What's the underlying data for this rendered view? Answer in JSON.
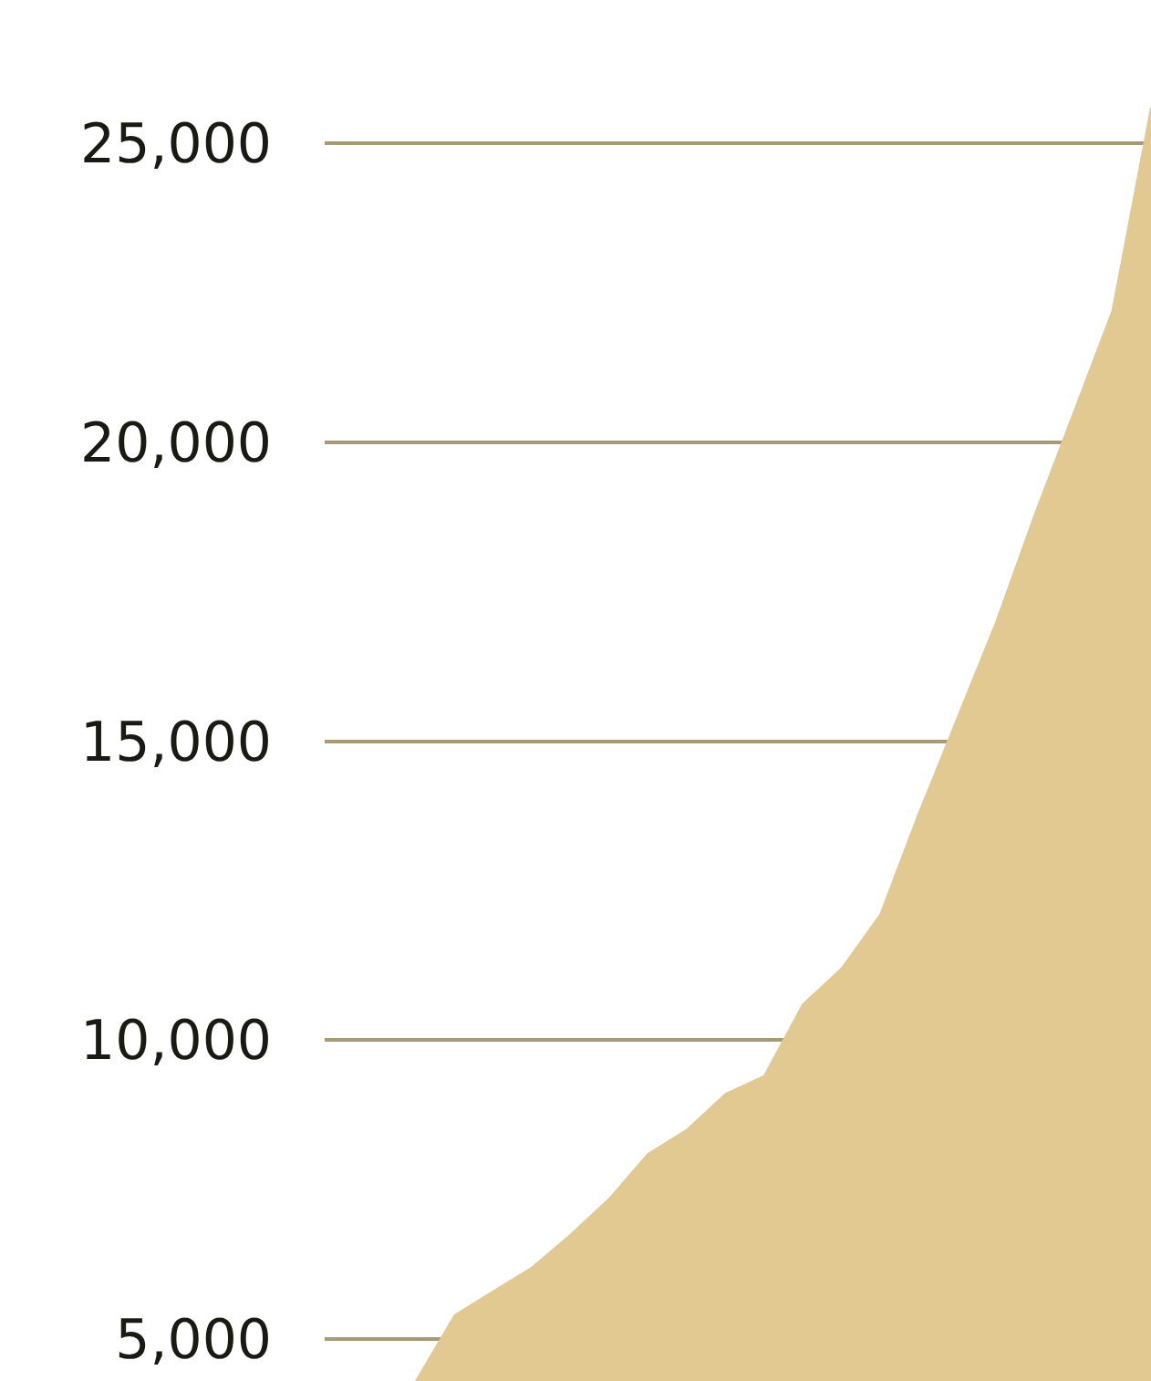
{
  "chart_data": {
    "type": "area",
    "categories": [
      null,
      null,
      null,
      null,
      null,
      null,
      null,
      null,
      null,
      null,
      null,
      null,
      null,
      null,
      null,
      null,
      null,
      null,
      null,
      null
    ],
    "values": [
      4300,
      5400,
      5800,
      6200,
      6750,
      7350,
      8100,
      8500,
      9100,
      9400,
      10600,
      11200,
      12100,
      13800,
      15400,
      17000,
      18800,
      20500,
      22200,
      25600
    ],
    "color": "#e2c992",
    "ylim": [
      4300,
      27400
    ],
    "yticks": [
      {
        "value": 5000,
        "label": "5,000"
      },
      {
        "value": 10000,
        "label": "10,000"
      },
      {
        "value": 15000,
        "label": "15,000"
      },
      {
        "value": 20000,
        "label": "20,000"
      },
      {
        "value": 25000,
        "label": "25,000"
      }
    ],
    "grid": "y",
    "tick_labels": "y",
    "legend": false
  }
}
